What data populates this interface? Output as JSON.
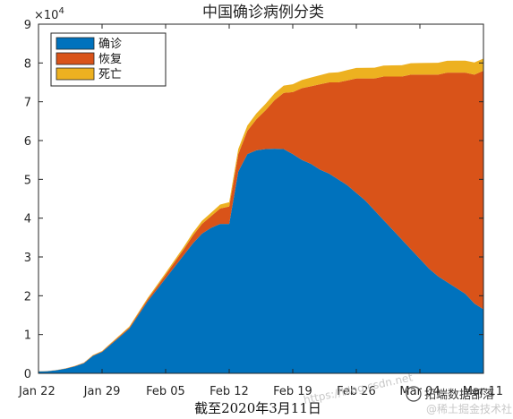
{
  "chart_data": {
    "type": "area",
    "title": "中国确诊病例分类",
    "caption": "截至2020年3月11日",
    "exponent_label": "×10",
    "exponent_power": "4",
    "ylim": [
      0,
      90000
    ],
    "y_ticks": [
      0,
      10000,
      20000,
      30000,
      40000,
      50000,
      60000,
      70000,
      80000,
      90000
    ],
    "y_tick_labels": [
      "0",
      "1",
      "2",
      "3",
      "4",
      "5",
      "6",
      "7",
      "8",
      "9"
    ],
    "xlim": [
      "2020-01-22",
      "2020-03-11"
    ],
    "x_ticks": [
      "2020-01-22",
      "2020-01-29",
      "2020-02-05",
      "2020-02-12",
      "2020-02-19",
      "2020-02-26",
      "2020-03-04",
      "2020-03-11"
    ],
    "x_tick_labels": [
      "Jan 22",
      "Jan 29",
      "Feb 05",
      "Feb 12",
      "Feb 19",
      "Feb 26",
      "Mar 04",
      "Mar 11"
    ],
    "legend_placement": "top-left",
    "stacked": true,
    "x": [
      "2020-01-22",
      "2020-01-23",
      "2020-01-24",
      "2020-01-25",
      "2020-01-26",
      "2020-01-27",
      "2020-01-28",
      "2020-01-29",
      "2020-01-30",
      "2020-01-31",
      "2020-02-01",
      "2020-02-02",
      "2020-02-03",
      "2020-02-04",
      "2020-02-05",
      "2020-02-06",
      "2020-02-07",
      "2020-02-08",
      "2020-02-09",
      "2020-02-10",
      "2020-02-11",
      "2020-02-12",
      "2020-02-13",
      "2020-02-14",
      "2020-02-15",
      "2020-02-16",
      "2020-02-17",
      "2020-02-18",
      "2020-02-19",
      "2020-02-20",
      "2020-02-21",
      "2020-02-22",
      "2020-02-23",
      "2020-02-24",
      "2020-02-25",
      "2020-02-26",
      "2020-02-27",
      "2020-02-28",
      "2020-02-29",
      "2020-03-01",
      "2020-03-02",
      "2020-03-03",
      "2020-03-04",
      "2020-03-05",
      "2020-03-06",
      "2020-03-07",
      "2020-03-08",
      "2020-03-09",
      "2020-03-10",
      "2020-03-11"
    ],
    "series": [
      {
        "name": "确诊",
        "color": "#0072BD",
        "values": [
          500,
          550,
          800,
          1200,
          1800,
          2600,
          4500,
          5500,
          7500,
          9500,
          11500,
          15000,
          18500,
          21500,
          24500,
          27500,
          30500,
          33500,
          36000,
          37500,
          38500,
          38500,
          52000,
          56500,
          57500,
          57800,
          57900,
          57800,
          56500,
          55000,
          54000,
          52500,
          51500,
          50000,
          48500,
          46500,
          44500,
          42000,
          39500,
          37000,
          34500,
          32000,
          29500,
          27000,
          25000,
          23500,
          22000,
          20500,
          18000,
          16500
        ]
      },
      {
        "name": "恢复",
        "color": "#D95319",
        "values": [
          30,
          40,
          50,
          60,
          80,
          100,
          120,
          150,
          200,
          250,
          300,
          400,
          500,
          700,
          900,
          1200,
          1500,
          2000,
          2500,
          3000,
          4000,
          4500,
          4500,
          6000,
          8000,
          10000,
          12500,
          14500,
          16000,
          18500,
          20000,
          22000,
          23500,
          25000,
          27000,
          29500,
          31500,
          34000,
          37000,
          39500,
          42000,
          45000,
          47500,
          50000,
          52000,
          54000,
          55500,
          57000,
          59000,
          61500
        ]
      },
      {
        "name": "死亡",
        "color": "#EDB120",
        "values": [
          20,
          25,
          30,
          50,
          60,
          80,
          100,
          130,
          170,
          210,
          260,
          300,
          360,
          420,
          490,
          560,
          630,
          720,
          810,
          900,
          1010,
          1110,
          1300,
          1380,
          1520,
          1660,
          1770,
          1860,
          2000,
          2110,
          2230,
          2340,
          2440,
          2590,
          2660,
          2710,
          2740,
          2790,
          2830,
          2870,
          2910,
          2940,
          2980,
          3010,
          3040,
          3070,
          3090,
          3110,
          3130,
          3150
        ]
      }
    ]
  },
  "watermarks": {
    "blog": "https://blog.csdn.net",
    "brand": "拓端数据部落",
    "brand_sub": "@稀土掘金技术社区"
  }
}
